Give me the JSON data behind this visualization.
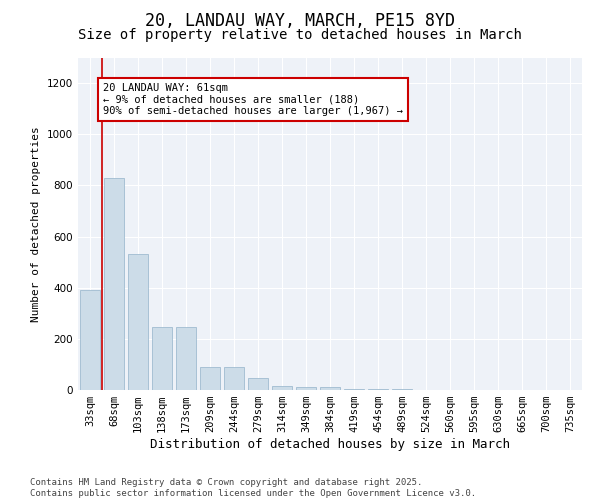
{
  "title1": "20, LANDAU WAY, MARCH, PE15 8YD",
  "title2": "Size of property relative to detached houses in March",
  "xlabel": "Distribution of detached houses by size in March",
  "ylabel": "Number of detached properties",
  "categories": [
    "33sqm",
    "68sqm",
    "103sqm",
    "138sqm",
    "173sqm",
    "209sqm",
    "244sqm",
    "279sqm",
    "314sqm",
    "349sqm",
    "384sqm",
    "419sqm",
    "454sqm",
    "489sqm",
    "524sqm",
    "560sqm",
    "595sqm",
    "630sqm",
    "665sqm",
    "700sqm",
    "735sqm"
  ],
  "values": [
    390,
    830,
    530,
    245,
    245,
    90,
    90,
    45,
    15,
    12,
    10,
    5,
    5,
    3,
    0,
    0,
    0,
    0,
    0,
    0,
    0
  ],
  "bar_color": "#ccdce8",
  "bar_edge_color": "#a0bcd0",
  "vline_color": "#cc0000",
  "vline_x_index": 0.5,
  "annotation_text": "20 LANDAU WAY: 61sqm\n← 9% of detached houses are smaller (188)\n90% of semi-detached houses are larger (1,967) →",
  "annotation_box_facecolor": "#ffffff",
  "annotation_box_edgecolor": "#cc0000",
  "ylim": [
    0,
    1300
  ],
  "yticks": [
    0,
    200,
    400,
    600,
    800,
    1000,
    1200
  ],
  "background_color": "#eef2f8",
  "grid_color": "#ffffff",
  "footer_text": "Contains HM Land Registry data © Crown copyright and database right 2025.\nContains public sector information licensed under the Open Government Licence v3.0.",
  "title1_fontsize": 12,
  "title2_fontsize": 10,
  "xlabel_fontsize": 9,
  "ylabel_fontsize": 8,
  "annot_fontsize": 7.5,
  "tick_fontsize": 7.5,
  "footer_fontsize": 6.5
}
